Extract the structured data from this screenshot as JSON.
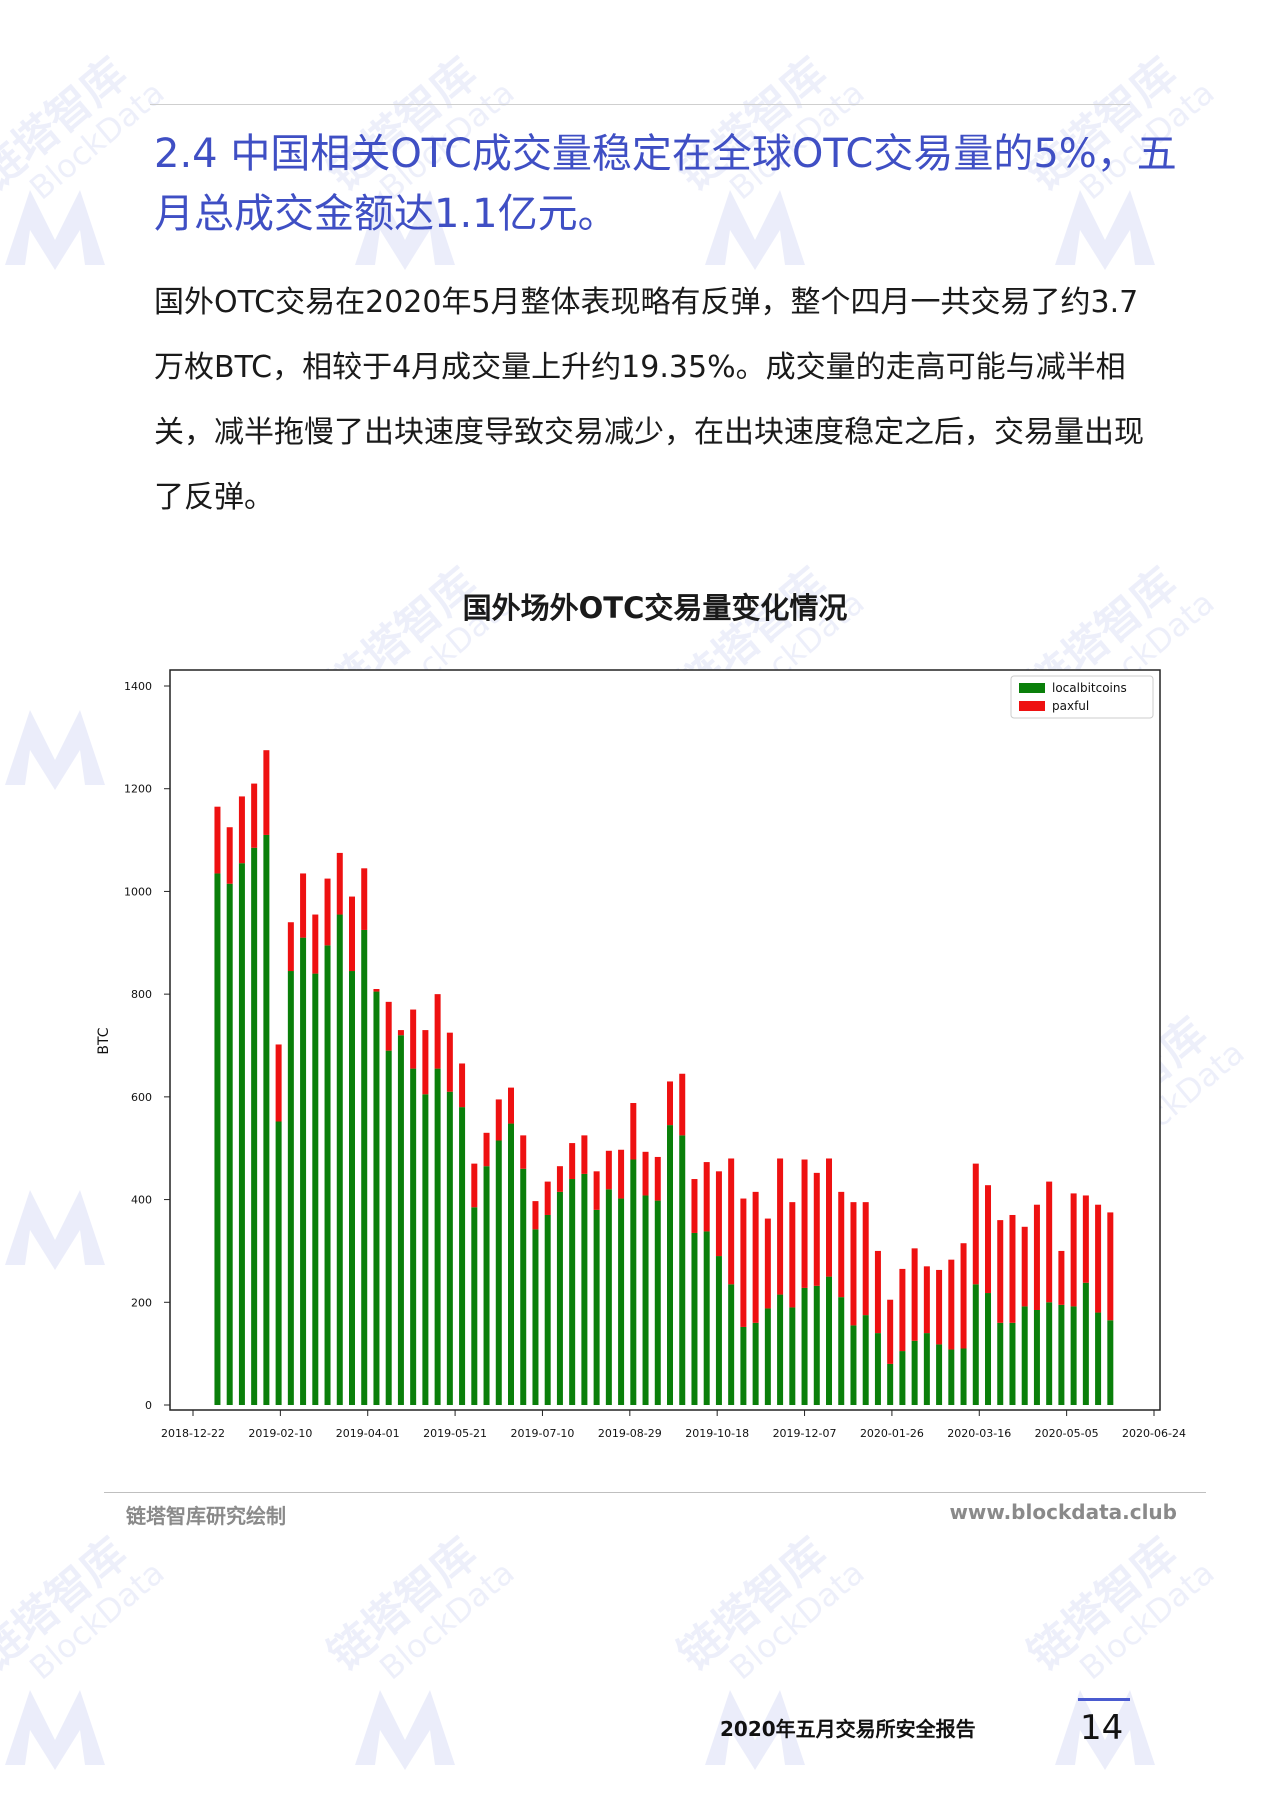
{
  "watermark": {
    "cn": "链塔智库",
    "en": "BlockData"
  },
  "section": {
    "title": "2.4 中国相关OTC成交量稳定在全球OTC交易量的5%，五月总成交金额达1.1亿元。"
  },
  "body": {
    "paragraph": "国外OTC交易在2020年5月整体表现略有反弹，整个四月一共交易了约3.7万枚BTC，相较于4月成交量上升约19.35%。成交量的走高可能与减半相关，减半拖慢了出块速度导致交易减少，在出块速度稳定之后，交易量出现了反弹。"
  },
  "chart_data": {
    "type": "bar",
    "stacked": true,
    "title": "国外场外OTC交易量变化情况",
    "ylabel": "BTC",
    "xlabel": "",
    "ylim": [
      0,
      1400
    ],
    "yticks": [
      0,
      200,
      400,
      600,
      800,
      1000,
      1200,
      1400
    ],
    "x_tick_labels": [
      "2018-12-22",
      "2019-02-10",
      "2019-04-01",
      "2019-05-21",
      "2019-07-10",
      "2019-08-29",
      "2019-10-18",
      "2019-12-07",
      "2020-01-26",
      "2020-03-16",
      "2020-05-05",
      "2020-06-24"
    ],
    "x_start": "2018-12-22",
    "x_end": "2020-06-24",
    "grid": false,
    "legend_position": "top-right",
    "series": [
      {
        "name": "localbitcoins",
        "color": "#0a7f0a",
        "dates": [
          "2019-01-05",
          "2019-01-12",
          "2019-01-19",
          "2019-01-26",
          "2019-02-02",
          "2019-02-09",
          "2019-02-16",
          "2019-02-23",
          "2019-03-02",
          "2019-03-09",
          "2019-03-16",
          "2019-03-23",
          "2019-03-30",
          "2019-04-06",
          "2019-04-13",
          "2019-04-20",
          "2019-04-27",
          "2019-05-04",
          "2019-05-11",
          "2019-05-18",
          "2019-05-25",
          "2019-06-01",
          "2019-06-08",
          "2019-06-15",
          "2019-06-22",
          "2019-06-29",
          "2019-07-06",
          "2019-07-13",
          "2019-07-20",
          "2019-07-27",
          "2019-08-03",
          "2019-08-10",
          "2019-08-17",
          "2019-08-24",
          "2019-08-31",
          "2019-09-07",
          "2019-09-14",
          "2019-09-21",
          "2019-09-28",
          "2019-10-05",
          "2019-10-12",
          "2019-10-19",
          "2019-10-26",
          "2019-11-02",
          "2019-11-09",
          "2019-11-16",
          "2019-11-23",
          "2019-11-30",
          "2019-12-07",
          "2019-12-14",
          "2019-12-21",
          "2019-12-28",
          "2020-01-04",
          "2020-01-11",
          "2020-01-18",
          "2020-01-25",
          "2020-02-01",
          "2020-02-08",
          "2020-02-15",
          "2020-02-22",
          "2020-02-29",
          "2020-03-07",
          "2020-03-14",
          "2020-03-21",
          "2020-03-28",
          "2020-04-04",
          "2020-04-11",
          "2020-04-18",
          "2020-04-25",
          "2020-05-02",
          "2020-05-09",
          "2020-05-16",
          "2020-05-23",
          "2020-05-30",
          "2020-06-06"
        ],
        "values": [
          1035,
          1015,
          1055,
          1085,
          1110,
          552,
          845,
          910,
          840,
          895,
          955,
          845,
          925,
          805,
          690,
          720,
          655,
          605,
          655,
          610,
          580,
          385,
          465,
          515,
          548,
          460,
          342,
          370,
          415,
          440,
          450,
          380,
          420,
          402,
          478,
          408,
          398,
          545,
          525,
          335,
          338,
          290,
          235,
          152,
          160,
          188,
          215,
          190,
          228,
          232,
          250,
          210,
          155,
          175,
          140,
          80,
          105,
          125,
          140,
          118,
          108,
          110,
          235,
          218,
          160,
          160,
          192,
          185,
          200,
          195,
          192,
          238,
          180,
          165,
          0
        ]
      },
      {
        "name": "paxful",
        "color": "#ee1111",
        "dates": [
          "2019-01-05",
          "2019-01-12",
          "2019-01-19",
          "2019-01-26",
          "2019-02-02",
          "2019-02-09",
          "2019-02-16",
          "2019-02-23",
          "2019-03-02",
          "2019-03-09",
          "2019-03-16",
          "2019-03-23",
          "2019-03-30",
          "2019-04-06",
          "2019-04-13",
          "2019-04-20",
          "2019-04-27",
          "2019-05-04",
          "2019-05-11",
          "2019-05-18",
          "2019-05-25",
          "2019-06-01",
          "2019-06-08",
          "2019-06-15",
          "2019-06-22",
          "2019-06-29",
          "2019-07-06",
          "2019-07-13",
          "2019-07-20",
          "2019-07-27",
          "2019-08-03",
          "2019-08-10",
          "2019-08-17",
          "2019-08-24",
          "2019-08-31",
          "2019-09-07",
          "2019-09-14",
          "2019-09-21",
          "2019-09-28",
          "2019-10-05",
          "2019-10-12",
          "2019-10-19",
          "2019-10-26",
          "2019-11-02",
          "2019-11-09",
          "2019-11-16",
          "2019-11-23",
          "2019-11-30",
          "2019-12-07",
          "2019-12-14",
          "2019-12-21",
          "2019-12-28",
          "2020-01-04",
          "2020-01-11",
          "2020-01-18",
          "2020-01-25",
          "2020-02-01",
          "2020-02-08",
          "2020-02-15",
          "2020-02-22",
          "2020-02-29",
          "2020-03-07",
          "2020-03-14",
          "2020-03-21",
          "2020-03-28",
          "2020-04-04",
          "2020-04-11",
          "2020-04-18",
          "2020-04-25",
          "2020-05-02",
          "2020-05-09",
          "2020-05-16",
          "2020-05-23",
          "2020-05-30",
          "2020-06-06"
        ],
        "values": [
          130,
          110,
          130,
          125,
          165,
          150,
          95,
          125,
          115,
          130,
          120,
          145,
          120,
          5,
          95,
          10,
          115,
          125,
          145,
          115,
          85,
          85,
          65,
          80,
          70,
          65,
          55,
          65,
          50,
          70,
          75,
          75,
          75,
          95,
          110,
          85,
          85,
          85,
          120,
          105,
          135,
          165,
          245,
          250,
          255,
          175,
          265,
          205,
          250,
          220,
          230,
          205,
          240,
          220,
          160,
          125,
          160,
          180,
          130,
          145,
          175,
          205,
          235,
          210,
          200,
          210,
          155,
          205,
          235,
          105,
          220,
          170,
          210,
          210,
          0
        ]
      }
    ]
  },
  "footer": {
    "source": "链塔智库研究绘制",
    "website": "www.blockdata.club"
  },
  "page": {
    "report_name": "2020年五月交易所安全报告",
    "number": "14"
  }
}
